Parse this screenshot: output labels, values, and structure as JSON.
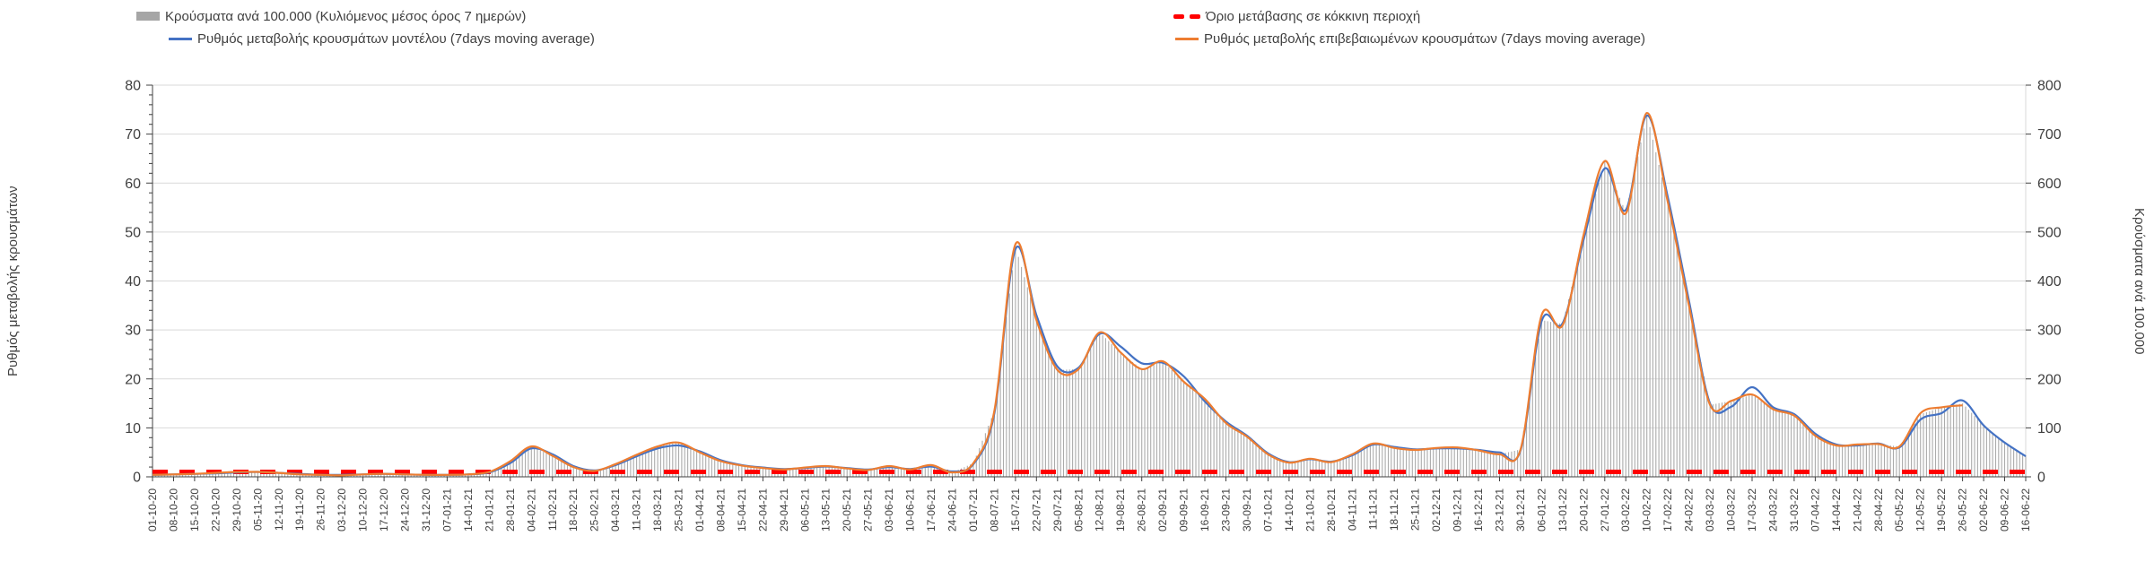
{
  "legend": {
    "items": [
      {
        "label": "Κρούσματα ανά 100.000 (Κυλιόμενος μέσος όρος 7 ημερών)",
        "swatch": "gray-bar-swatch",
        "color": "#a6a6a6"
      },
      {
        "label": "Ρυθμός μεταβολής κρουσμάτων μοντέλου (7days moving average)",
        "swatch": "blue-line-swatch",
        "color": "#4472c4"
      },
      {
        "label": "Όριο μετάβασης σε κόκκινη περιοχή",
        "swatch": "red-dashed-swatch",
        "color": "#ff0000"
      },
      {
        "label": "Ρυθμός μεταβολής επιβεβαιωμένων κρουσμάτων (7days moving average)",
        "swatch": "orange-line-swatch",
        "color": "#ed7d31"
      }
    ]
  },
  "chart_data": {
    "type": "combo bar+line, dual y-axis",
    "left_axis": {
      "title": "Ρυθμός μεταβολής κρουσμάτων",
      "min": 0,
      "max": 80,
      "step": 10,
      "minor_step": 2
    },
    "right_axis": {
      "title": "Κρούσματα ανά 100.000",
      "min": 0,
      "max": 800,
      "step": 100
    },
    "grid": "horizontal light gray lines every 10 (left axis)",
    "legend_position": "top, two columns",
    "colors": {
      "bars": "#ababab",
      "model_line": "#4472c4",
      "confirmed_line": "#ed7d31",
      "threshold": "#ff0000",
      "gridline": "#d9d9d9",
      "axis": "#404040"
    },
    "x_labels": [
      "01-10-20",
      "08-10-20",
      "15-10-20",
      "22-10-20",
      "29-10-20",
      "05-11-20",
      "12-11-20",
      "19-11-20",
      "26-11-20",
      "03-12-20",
      "10-12-20",
      "17-12-20",
      "24-12-20",
      "31-12-20",
      "07-01-21",
      "14-01-21",
      "21-01-21",
      "28-01-21",
      "04-02-21",
      "11-02-21",
      "18-02-21",
      "25-02-21",
      "04-03-21",
      "11-03-21",
      "18-03-21",
      "25-03-21",
      "01-04-21",
      "08-04-21",
      "15-04-21",
      "22-04-21",
      "29-04-21",
      "06-05-21",
      "13-05-21",
      "20-05-21",
      "27-05-21",
      "03-06-21",
      "10-06-21",
      "17-06-21",
      "24-06-21",
      "01-07-21",
      "08-07-21",
      "15-07-21",
      "22-07-21",
      "29-07-21",
      "05-08-21",
      "12-08-21",
      "19-08-21",
      "26-08-21",
      "02-09-21",
      "09-09-21",
      "16-09-21",
      "23-09-21",
      "30-09-21",
      "07-10-21",
      "14-10-21",
      "21-10-21",
      "28-10-21",
      "04-11-21",
      "11-11-21",
      "18-11-21",
      "25-11-21",
      "02-12-21",
      "09-12-21",
      "16-12-21",
      "23-12-21",
      "30-12-21",
      "06-01-22",
      "13-01-22",
      "20-01-22",
      "27-01-22",
      "03-02-22",
      "10-02-22",
      "17-02-22",
      "24-02-22",
      "03-03-22",
      "10-03-22",
      "17-03-22",
      "24-03-22",
      "31-03-22",
      "07-04-22",
      "14-04-22",
      "21-04-22",
      "28-04-22",
      "05-05-22",
      "12-05-22",
      "19-05-22",
      "26-05-22",
      "02-06-22",
      "09-06-22",
      "16-06-22"
    ],
    "series": [
      {
        "name": "Κρούσματα ανά 100.000 (Κυλιόμενος μέσος όρος 7 ημερών)",
        "type": "bar",
        "axis": "right",
        "color": "#ababab",
        "values": [
          4,
          5,
          6,
          8,
          10,
          10,
          8,
          5,
          4,
          3,
          5,
          6,
          5,
          4,
          4,
          5,
          10,
          32,
          62,
          43,
          20,
          12,
          26,
          45,
          62,
          70,
          50,
          32,
          23,
          18,
          15,
          19,
          22,
          17,
          14,
          22,
          15,
          24,
          9,
          28,
          135,
          470,
          325,
          218,
          220,
          295,
          254,
          220,
          236,
          194,
          159,
          110,
          82,
          46,
          29,
          37,
          30,
          46,
          68,
          59,
          55,
          59,
          60,
          54,
          46,
          56,
          320,
          312,
          490,
          645,
          540,
          740,
          560,
          350,
          147,
          155,
          168,
          138,
          125,
          84,
          64,
          66,
          67,
          62,
          128,
          142,
          150,
          105,
          70,
          43
        ]
      },
      {
        "name": "Ρυθμός μεταβολής κρουσμάτων μοντέλου (7days moving average)",
        "type": "line",
        "axis": "left",
        "color": "#4472c4",
        "values": [
          0.4,
          0.5,
          0.6,
          0.7,
          0.9,
          1.0,
          0.8,
          0.6,
          0.4,
          0.4,
          0.5,
          0.6,
          0.5,
          0.4,
          0.4,
          0.5,
          0.9,
          2.8,
          5.8,
          4.6,
          2.2,
          1.3,
          2.4,
          4.2,
          5.8,
          6.4,
          5.2,
          3.4,
          2.4,
          1.9,
          1.6,
          1.8,
          2.1,
          1.8,
          1.5,
          2.0,
          1.6,
          2.1,
          1.1,
          2.6,
          13,
          46.5,
          33,
          22.5,
          22.3,
          29.2,
          26.6,
          23.2,
          23.3,
          20.5,
          15.4,
          11.3,
          8.4,
          4.8,
          3.0,
          3.6,
          3.1,
          4.4,
          6.6,
          6.1,
          5.6,
          5.8,
          5.8,
          5.5,
          5.0,
          5.4,
          31.8,
          31.4,
          48.5,
          63,
          54.5,
          73.8,
          57,
          36,
          15,
          14.3,
          18.3,
          14.2,
          12.8,
          8.8,
          6.6,
          6.4,
          6.8,
          6.0,
          11.7,
          13.0,
          15.6,
          10.5,
          7.0,
          4.2
        ]
      },
      {
        "name": "Ρυθμός μεταβολής επιβεβαιωμένων κρουσμάτων (7days moving average)",
        "type": "line",
        "axis": "left",
        "color": "#ed7d31",
        "values": [
          0.4,
          0.5,
          0.6,
          0.8,
          1.0,
          1.0,
          0.8,
          0.5,
          0.4,
          0.3,
          0.5,
          0.6,
          0.5,
          0.4,
          0.4,
          0.5,
          1.0,
          3.2,
          6.2,
          4.3,
          2.0,
          1.2,
          2.6,
          4.5,
          6.2,
          7.0,
          5.0,
          3.2,
          2.3,
          1.8,
          1.5,
          1.9,
          2.2,
          1.7,
          1.4,
          2.2,
          1.5,
          2.4,
          0.9,
          2.8,
          13.5,
          47.5,
          32,
          21.8,
          22.0,
          29.5,
          25.4,
          22.0,
          23.6,
          19.4,
          15.9,
          11.0,
          8.2,
          4.6,
          2.9,
          3.7,
          3.0,
          4.6,
          6.8,
          5.9,
          5.5,
          5.9,
          6.0,
          5.4,
          4.6,
          5.6,
          33.0,
          31.0,
          49.5,
          64.5,
          53.8,
          74.3,
          56,
          35,
          14.7,
          15.5,
          16.8,
          13.8,
          12.5,
          8.4,
          6.4,
          6.6,
          6.7,
          6.2,
          13.0,
          14.2,
          14.6,
          null,
          null,
          null
        ]
      },
      {
        "name": "Όριο μετάβασης σε κόκκινη περιοχή",
        "type": "threshold-line",
        "axis": "left",
        "color": "#ff0000",
        "value": 1
      }
    ]
  }
}
